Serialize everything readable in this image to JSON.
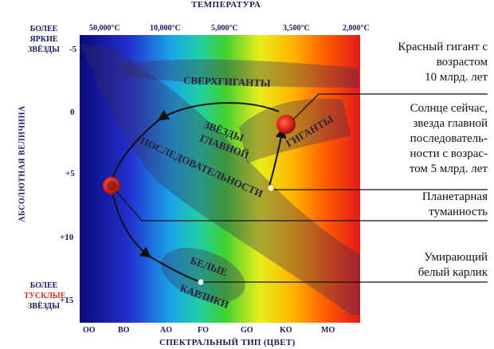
{
  "top_axis_title": "ТЕМПЕРАТУРА",
  "bottom_axis_title": "СПЕКТРАЛЬНЫЙ ТИП (ЦВЕТ)",
  "y_axis_title": "АБСОЛЮТНАЯ ВЕЛИЧИНА",
  "bright_label": [
    "БОЛЕЕ",
    "ЯРКИЕ",
    "ЗВЁЗДЫ"
  ],
  "dim_label": [
    "БОЛЕЕ",
    "ТУСКЛЫЕ",
    "ЗВЁЗДЫ"
  ],
  "temperatures": [
    "50,000°C",
    "10,000°C",
    "5,000°C",
    "3,500°C",
    "2,000°C"
  ],
  "magnitudes": [
    "-5",
    "0",
    "+5",
    "+10",
    "+15"
  ],
  "spectral_types": [
    "OO",
    "BO",
    "AO",
    "FO",
    "GO",
    "KO",
    "MO"
  ],
  "regions": {
    "supergiants": "СВЕРХГИГАНТЫ",
    "giants": "ГИГАНТЫ",
    "main_sequence": [
      "ЗВЁЗДЫ",
      "ГЛАВНОЙ",
      "ПОСЛЕДОВАТЕЛЬНОСТИ"
    ],
    "white_dwarfs": [
      "БЕЛЫЕ",
      "КАРЛИКИ"
    ]
  },
  "annotations": {
    "red_giant": [
      "Красный гигант с",
      "возрастом",
      "10 млрд. лет"
    ],
    "sun_now": [
      "Солнце сейчас,",
      "звезда главной",
      "последователь-",
      "ности с возрас-",
      "том 5 млрд. лет"
    ],
    "nebula": [
      "Планетарная",
      "туманность"
    ],
    "white_dwarf": [
      "Умирающий",
      "белый карлик"
    ]
  },
  "colors": {
    "spectrum": [
      "#0a0a8c",
      "#2a3ad8",
      "#11c3e0",
      "#2fd24a",
      "#e8ee1a",
      "#ffb400",
      "#ff6a00",
      "#e8201c"
    ],
    "star_red": "#e0261a",
    "navy": "#1a1a5e"
  }
}
